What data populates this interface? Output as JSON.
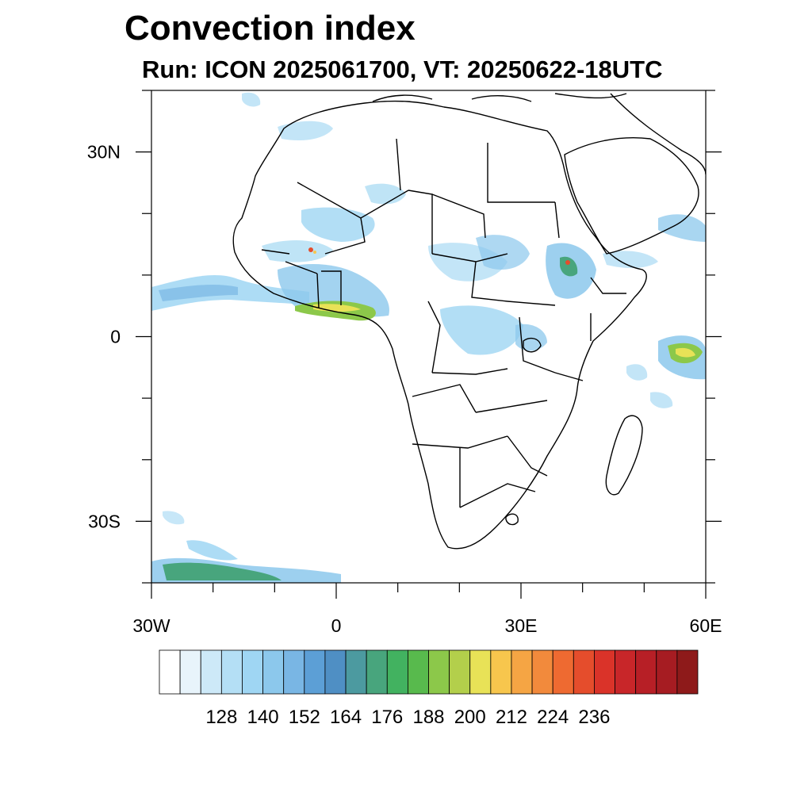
{
  "title": "Convection index",
  "subtitle": "Run: ICON 2025061700,  VT: 20250622-18UTC",
  "map": {
    "region": "Africa",
    "projection": "cylindrical equidistant",
    "lon_range": [
      -30,
      60
    ],
    "lat_range": [
      -40,
      40
    ],
    "lat_ticks": [
      {
        "value": 30,
        "label": "30N"
      },
      {
        "value": 0,
        "label": "0"
      },
      {
        "value": -30,
        "label": "30S"
      }
    ],
    "lon_ticks": [
      {
        "value": -30,
        "label": "30W"
      },
      {
        "value": 0,
        "label": "0"
      },
      {
        "value": 30,
        "label": "30E"
      },
      {
        "value": 60,
        "label": "60E"
      }
    ]
  },
  "colorbar": {
    "labels": [
      "128",
      "140",
      "152",
      "164",
      "176",
      "188",
      "200",
      "212",
      "224",
      "236"
    ],
    "colors": [
      "#ffffff",
      "#e8f4fb",
      "#cde9f8",
      "#b4dff5",
      "#9fd6f3",
      "#8cc8ec",
      "#79b6e4",
      "#5c9fd6",
      "#4f8fc4",
      "#4c9aa0",
      "#48a57d",
      "#42b260",
      "#58ba4d",
      "#8cc84a",
      "#b3cf4b",
      "#e8e257",
      "#f7c64d",
      "#f5a544",
      "#f28a3c",
      "#ee6a31",
      "#e54d2c",
      "#da3329",
      "#c82629",
      "#b71f26",
      "#a61c22",
      "#8e1a1a"
    ]
  }
}
